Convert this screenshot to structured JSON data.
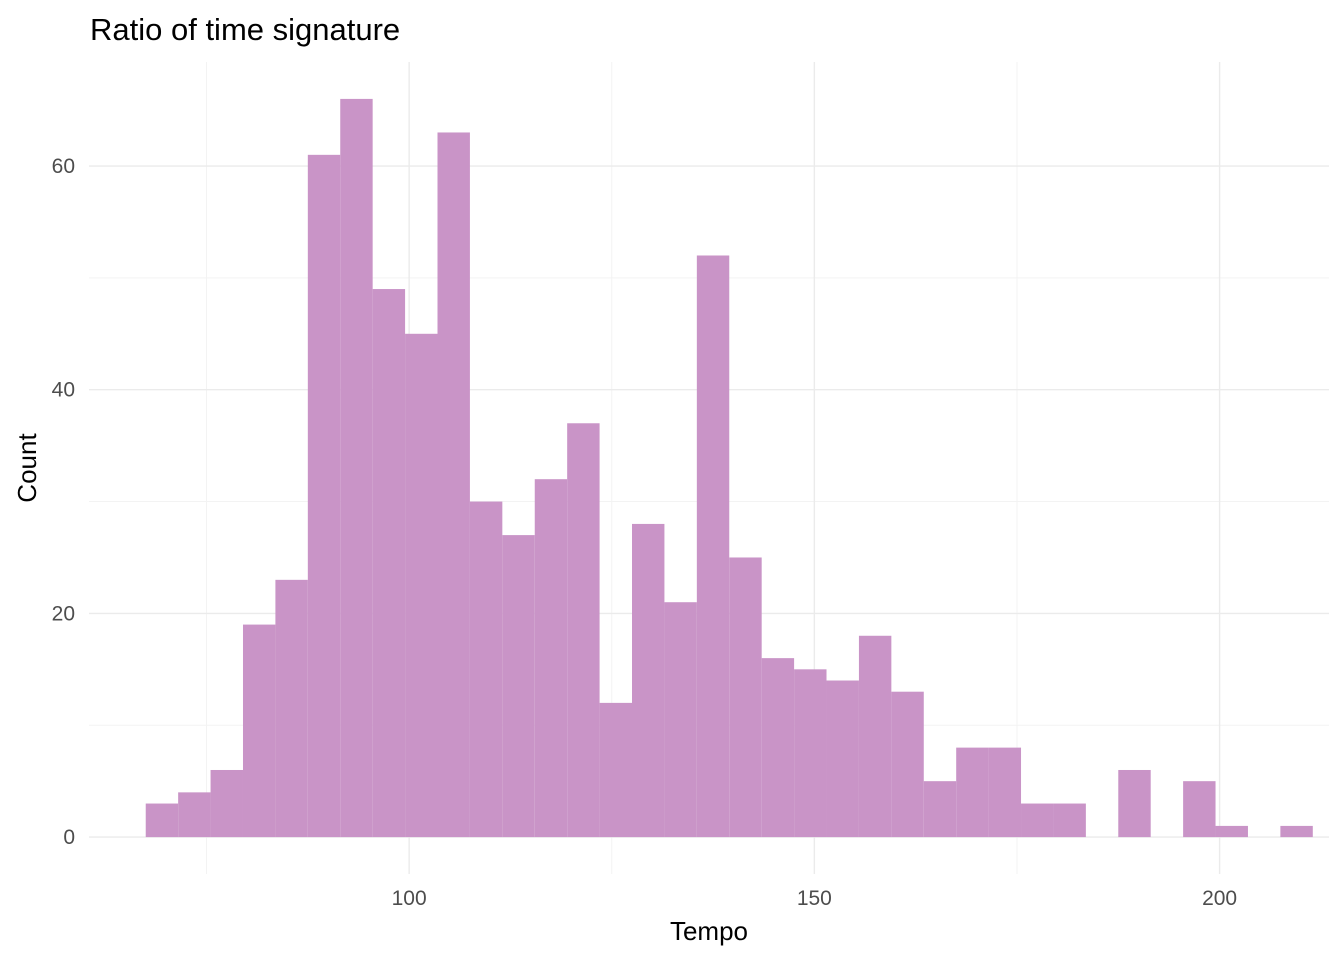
{
  "chart_data": {
    "type": "bar",
    "subtype": "histogram",
    "title": "Ratio of time signature",
    "xlabel": "Tempo",
    "ylabel": "Count",
    "bar_color": "#c994c7",
    "grid": true,
    "legend": "none",
    "xlim": [
      60.5,
      213.5
    ],
    "ylim": [
      -3.3,
      69.3
    ],
    "x_ticks": [
      100,
      150,
      200
    ],
    "y_ticks": [
      0,
      20,
      40,
      60
    ],
    "x_tick_labels": [
      "100",
      "150",
      "200"
    ],
    "y_tick_labels": [
      "0",
      "20",
      "40",
      "60"
    ],
    "bin_width": 4,
    "bins": [
      {
        "x0": 67.5,
        "x1": 71.5,
        "count": 3
      },
      {
        "x0": 71.5,
        "x1": 75.5,
        "count": 4
      },
      {
        "x0": 75.5,
        "x1": 79.5,
        "count": 6
      },
      {
        "x0": 79.5,
        "x1": 83.5,
        "count": 19
      },
      {
        "x0": 83.5,
        "x1": 87.5,
        "count": 23
      },
      {
        "x0": 87.5,
        "x1": 91.5,
        "count": 61
      },
      {
        "x0": 91.5,
        "x1": 95.5,
        "count": 66
      },
      {
        "x0": 95.5,
        "x1": 99.5,
        "count": 49
      },
      {
        "x0": 99.5,
        "x1": 103.5,
        "count": 45
      },
      {
        "x0": 103.5,
        "x1": 107.5,
        "count": 63
      },
      {
        "x0": 107.5,
        "x1": 111.5,
        "count": 30
      },
      {
        "x0": 111.5,
        "x1": 115.5,
        "count": 27
      },
      {
        "x0": 115.5,
        "x1": 119.5,
        "count": 32
      },
      {
        "x0": 119.5,
        "x1": 123.5,
        "count": 37
      },
      {
        "x0": 123.5,
        "x1": 127.5,
        "count": 12
      },
      {
        "x0": 127.5,
        "x1": 131.5,
        "count": 28
      },
      {
        "x0": 131.5,
        "x1": 135.5,
        "count": 21
      },
      {
        "x0": 135.5,
        "x1": 139.5,
        "count": 52
      },
      {
        "x0": 139.5,
        "x1": 143.5,
        "count": 25
      },
      {
        "x0": 143.5,
        "x1": 147.5,
        "count": 16
      },
      {
        "x0": 147.5,
        "x1": 151.5,
        "count": 15
      },
      {
        "x0": 151.5,
        "x1": 155.5,
        "count": 14
      },
      {
        "x0": 155.5,
        "x1": 159.5,
        "count": 18
      },
      {
        "x0": 159.5,
        "x1": 163.5,
        "count": 13
      },
      {
        "x0": 163.5,
        "x1": 167.5,
        "count": 5
      },
      {
        "x0": 167.5,
        "x1": 171.5,
        "count": 8
      },
      {
        "x0": 171.5,
        "x1": 175.5,
        "count": 8
      },
      {
        "x0": 175.5,
        "x1": 179.5,
        "count": 3
      },
      {
        "x0": 179.5,
        "x1": 183.5,
        "count": 3
      },
      {
        "x0": 183.5,
        "x1": 187.5,
        "count": 0
      },
      {
        "x0": 187.5,
        "x1": 191.5,
        "count": 6
      },
      {
        "x0": 191.5,
        "x1": 195.5,
        "count": 0
      },
      {
        "x0": 195.5,
        "x1": 199.5,
        "count": 5
      },
      {
        "x0": 199.5,
        "x1": 203.5,
        "count": 1
      },
      {
        "x0": 203.5,
        "x1": 207.5,
        "count": 0
      },
      {
        "x0": 207.5,
        "x1": 211.5,
        "count": 1
      }
    ]
  }
}
